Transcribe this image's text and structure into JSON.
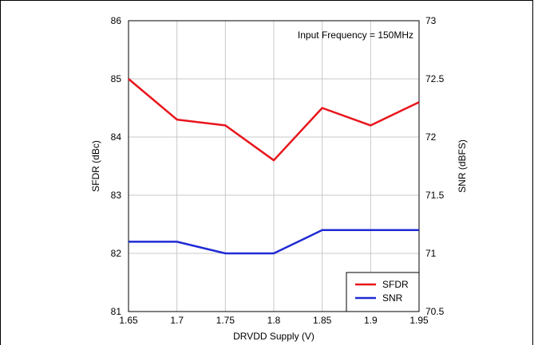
{
  "chart_data": {
    "type": "line",
    "title": "",
    "annotation": "Input Frequency = 150MHz",
    "xlabel": "DRVDD Supply (V)",
    "ylabel_left": "SFDR (dBc)",
    "ylabel_right": "SNR (dBFS)",
    "x": [
      1.65,
      1.7,
      1.75,
      1.8,
      1.85,
      1.9,
      1.95
    ],
    "x_ticks": [
      "1.65",
      "1.7",
      "1.75",
      "1.8",
      "1.85",
      "1.9",
      "1.95"
    ],
    "xlim": [
      1.65,
      1.95
    ],
    "ylim_left": [
      81,
      86
    ],
    "y_ticks_left": [
      "81",
      "82",
      "83",
      "84",
      "85",
      "86"
    ],
    "ylim_right": [
      70.5,
      73
    ],
    "y_ticks_right": [
      "70.5",
      "71",
      "71.5",
      "72",
      "72.5",
      "73"
    ],
    "grid": true,
    "legend_position": "bottom-right",
    "series": [
      {
        "name": "SFDR",
        "axis": "left",
        "color": "#e8141b",
        "values": [
          85.0,
          84.3,
          84.2,
          83.6,
          84.5,
          84.2,
          84.6
        ]
      },
      {
        "name": "SNR",
        "axis": "right",
        "color": "#1f2bd4",
        "values": [
          71.1,
          71.1,
          71.0,
          71.0,
          71.2,
          71.2,
          71.2
        ]
      }
    ]
  }
}
